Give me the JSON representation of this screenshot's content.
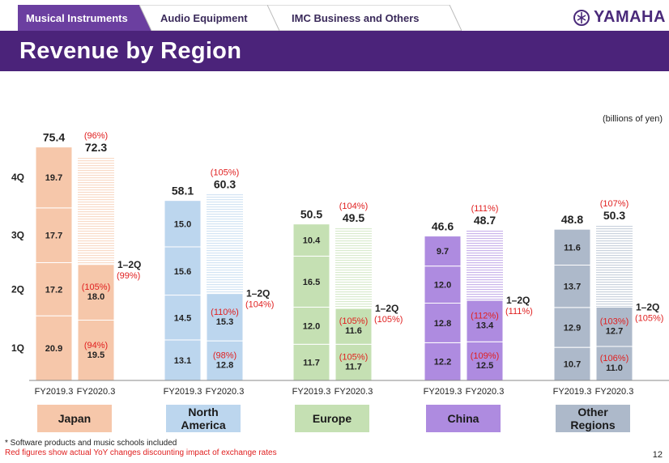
{
  "tabs": [
    "Musical  Instruments",
    "Audio Equipment",
    "IMC  Business  and  Others"
  ],
  "logo_text": "YAMAHA",
  "page_title": "Revenue by Region",
  "unit_note": "(billions of yen)",
  "footnote_line1": "* Software  products  and  music schools included",
  "footnote_line2": "Red figures show actual YoY changes discounting impact of exchange rates",
  "page_number": "12",
  "colors": {
    "purple": "#4b237a",
    "red": "#e02020"
  },
  "chart_data": {
    "type": "stacked-bar",
    "title": "Revenue by Region",
    "unit": "billions of yen",
    "quarters": [
      "1Q",
      "2Q",
      "3Q",
      "4Q"
    ],
    "fiscal_years": [
      "FY2019.3",
      "FY2020.3"
    ],
    "ylim": [
      0,
      80
    ],
    "regions": [
      {
        "name": "Japan",
        "color": "#f6c7aa",
        "fy2019": [
          20.9,
          17.2,
          17.7,
          19.7
        ],
        "fy2019_total": "75.4",
        "fy2020": [
          19.5,
          18.0
        ],
        "fy2020_forecast_total": 72.3,
        "fy2020_total": "72.3",
        "yoy_total": "(96%)",
        "yoy_quarters": [
          "(94%)",
          "(105%)"
        ],
        "h1_yoy": "(99%)"
      },
      {
        "name": "North America",
        "color": "#bcd6ee",
        "fy2019": [
          13.1,
          14.5,
          15.6,
          15.0
        ],
        "fy2019_total": "58.1",
        "fy2020": [
          12.8,
          15.3
        ],
        "fy2020_forecast_total": 60.3,
        "fy2020_total": "60.3",
        "yoy_total": "(105%)",
        "yoy_quarters": [
          "(98%)",
          "(110%)"
        ],
        "h1_yoy": "(104%)"
      },
      {
        "name": "Europe",
        "color": "#c5e0b3",
        "fy2019": [
          11.7,
          12.0,
          16.5,
          10.4
        ],
        "fy2019_total": "50.5",
        "fy2020": [
          11.7,
          11.6
        ],
        "fy2020_forecast_total": 49.5,
        "fy2020_total": "49.5",
        "yoy_total": "(104%)",
        "yoy_quarters": [
          "(105%)",
          "(105%)"
        ],
        "h1_yoy": "(105%)"
      },
      {
        "name": "China",
        "color": "#ae8be0",
        "fy2019": [
          12.2,
          12.8,
          12.0,
          9.7
        ],
        "fy2019_total": "46.6",
        "fy2020": [
          12.5,
          13.4
        ],
        "fy2020_forecast_total": 48.7,
        "fy2020_total": "48.7",
        "yoy_total": "(111%)",
        "yoy_quarters": [
          "(109%)",
          "(112%)"
        ],
        "h1_yoy": "(111%)"
      },
      {
        "name": "Other Regions",
        "color": "#adb9ca",
        "fy2019": [
          10.7,
          12.9,
          13.7,
          11.6
        ],
        "fy2019_total": "48.8",
        "fy2020": [
          11.0,
          12.7
        ],
        "fy2020_forecast_total": 50.3,
        "fy2020_total": "50.3",
        "yoy_total": "(107%)",
        "yoy_quarters": [
          "(106%)",
          "(103%)"
        ],
        "h1_yoy": "(105%)"
      }
    ],
    "h1_label": "1–2Q"
  }
}
